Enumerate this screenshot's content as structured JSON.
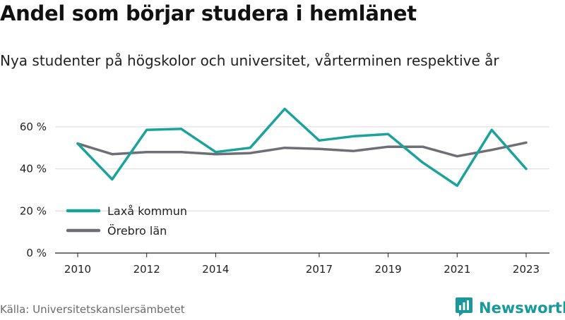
{
  "header": {
    "title": "Andel som börjar studera i hemlänet",
    "subtitle": "Nya studenter på högskolor och universitet, vårterminen respektive år"
  },
  "footer": {
    "source": "Källa: Universitetskanslersämbetet",
    "brand": "Newsworthy",
    "brand_icon": "bar-chart-logo-icon",
    "brand_color": "#19999a"
  },
  "chart_data": {
    "type": "line",
    "title": "Andel som börjar studera i hemlänet",
    "subtitle": "Nya studenter på högskolor och universitet, vårterminen respektive år",
    "xlabel": "",
    "ylabel": "",
    "x": [
      2010,
      2011,
      2012,
      2013,
      2014,
      2015,
      2016,
      2017,
      2018,
      2019,
      2020,
      2021,
      2022,
      2023
    ],
    "xticks": [
      2010,
      2012,
      2014,
      2017,
      2019,
      2021,
      2023
    ],
    "yticks": [
      0,
      20,
      40,
      60
    ],
    "ytick_labels": [
      "0 %",
      "20 %",
      "40 %",
      "60 %"
    ],
    "ylim": [
      0,
      70
    ],
    "xlim": [
      2010,
      2023
    ],
    "grid": "horizontal",
    "legend_position": "bottom-left",
    "series": [
      {
        "name": "Laxå kommun",
        "color": "#1aa39a",
        "values": [
          52,
          35,
          58.5,
          59,
          48,
          50,
          68.5,
          53.5,
          55.5,
          56.5,
          43,
          32,
          58.5,
          40
        ]
      },
      {
        "name": "Örebro län",
        "color": "#6e6e77",
        "values": [
          52,
          47,
          48,
          48,
          47,
          47.5,
          50,
          49.5,
          48.5,
          50.5,
          50.5,
          46,
          49,
          52.5
        ]
      }
    ]
  }
}
